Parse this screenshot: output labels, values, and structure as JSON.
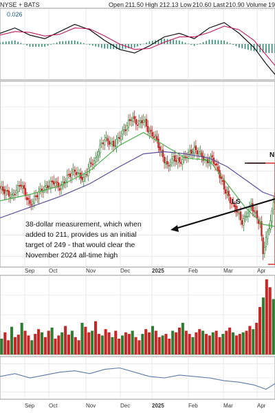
{
  "header": {
    "exchange": "NYSE + BATS",
    "open_label": "Open",
    "open_value": "211.50",
    "high_label": "High",
    "high_value": "212.13",
    "low_label": "Low",
    "low_value": "210.60",
    "last_label": "Last",
    "last_value": "210.90",
    "volume_label": "Volume",
    "volume_value": "19"
  },
  "macd_panel": {
    "readout": "0.026"
  },
  "annotation": {
    "lines": [
      "38-dollar measurement, which when",
      "added to 211, provides us an initial",
      "target of 249 - that would clear the",
      "November 2024 all-time high"
    ],
    "ls_label": "LS",
    "n_label": "N"
  },
  "x_axis": {
    "labels": [
      "Sep",
      "Oct",
      "Nov",
      "Dec",
      "2025",
      "Feb",
      "Mar",
      "Apr"
    ]
  },
  "colors": {
    "up": "#2e7d32",
    "down": "#c62828",
    "ma_fast": "#4caf50",
    "ma_slow": "#5c4b9b",
    "macd_line": "#111111",
    "signal_line": "#c2185b",
    "hist": "#2e8b6f",
    "rsi_line": "#5b7aa8",
    "grid": "#dcdcdc",
    "accent_box": "#d32f2f"
  },
  "chart_data": {
    "type": "candlestick",
    "xlabel": "",
    "ylabel": "",
    "months": [
      "Sep",
      "Oct",
      "Nov",
      "Dec",
      "2025",
      "Feb",
      "Mar",
      "Apr"
    ],
    "price_ylim": [
      175,
      262
    ],
    "price_points": [
      [
        0,
        212
      ],
      [
        8,
        208
      ],
      [
        14,
        214
      ],
      [
        20,
        204
      ],
      [
        26,
        210
      ],
      [
        32,
        213
      ],
      [
        36,
        215
      ],
      [
        40,
        212
      ],
      [
        46,
        218
      ],
      [
        50,
        220
      ],
      [
        56,
        216
      ],
      [
        60,
        223
      ],
      [
        64,
        225
      ],
      [
        66,
        230
      ],
      [
        70,
        235
      ],
      [
        76,
        232
      ],
      [
        80,
        236
      ],
      [
        84,
        240
      ],
      [
        88,
        245
      ],
      [
        92,
        242
      ],
      [
        96,
        244
      ],
      [
        100,
        238
      ],
      [
        104,
        236
      ],
      [
        108,
        228
      ],
      [
        112,
        222
      ],
      [
        116,
        226
      ],
      [
        120,
        224
      ],
      [
        126,
        228
      ],
      [
        130,
        230
      ],
      [
        134,
        228
      ],
      [
        138,
        224
      ],
      [
        142,
        226
      ],
      [
        146,
        220
      ],
      [
        150,
        212
      ],
      [
        154,
        206
      ],
      [
        158,
        202
      ],
      [
        162,
        196
      ],
      [
        164,
        198
      ],
      [
        168,
        204
      ],
      [
        172,
        198
      ],
      [
        174,
        195
      ],
      [
        176,
        182
      ],
      [
        178,
        188
      ],
      [
        180,
        194
      ],
      [
        182,
        200
      ],
      [
        184,
        211
      ]
    ],
    "ma_fast": [
      [
        0,
        206
      ],
      [
        20,
        209
      ],
      [
        40,
        213
      ],
      [
        60,
        220
      ],
      [
        80,
        232
      ],
      [
        96,
        238
      ],
      [
        110,
        232
      ],
      [
        124,
        226
      ],
      [
        140,
        225
      ],
      [
        152,
        214
      ],
      [
        164,
        203
      ],
      [
        176,
        195
      ],
      [
        184,
        194
      ]
    ],
    "ma_slow": [
      [
        0,
        198
      ],
      [
        20,
        203
      ],
      [
        40,
        208
      ],
      [
        60,
        214
      ],
      [
        80,
        222
      ],
      [
        96,
        228
      ],
      [
        110,
        229
      ],
      [
        124,
        228
      ],
      [
        140,
        226
      ],
      [
        152,
        222
      ],
      [
        164,
        216
      ],
      [
        176,
        210
      ],
      [
        184,
        208
      ]
    ],
    "volume_ylim": [
      0,
      100
    ],
    "volume": [
      20,
      28,
      18,
      35,
      22,
      25,
      40,
      30,
      24,
      18,
      26,
      32,
      28,
      22,
      30,
      34,
      20,
      24,
      28,
      36,
      25,
      30,
      22,
      18,
      40,
      35,
      28,
      30,
      42,
      26,
      24,
      32,
      28,
      22,
      30,
      20,
      24,
      28,
      26,
      30,
      22,
      18,
      26,
      32,
      28,
      36,
      30,
      22,
      24,
      26,
      20,
      30,
      28,
      34,
      40,
      30,
      26,
      22,
      28,
      32,
      30,
      26,
      24,
      28,
      30,
      22,
      26,
      30,
      34,
      28,
      24,
      26,
      28,
      30,
      36,
      32,
      40,
      60,
      72,
      95,
      85,
      70
    ],
    "macd_ylim": [
      -4,
      4
    ],
    "macd": [
      [
        0,
        1.2
      ],
      [
        10,
        1.8
      ],
      [
        20,
        1.0
      ],
      [
        30,
        0.6
      ],
      [
        40,
        1.4
      ],
      [
        50,
        2.2
      ],
      [
        60,
        1.6
      ],
      [
        70,
        0.4
      ],
      [
        80,
        -0.6
      ],
      [
        90,
        -1.0
      ],
      [
        100,
        -0.2
      ],
      [
        110,
        0.8
      ],
      [
        120,
        1.2
      ],
      [
        130,
        0.6
      ],
      [
        140,
        1.8
      ],
      [
        150,
        2.4
      ],
      [
        160,
        1.2
      ],
      [
        170,
        -0.4
      ],
      [
        178,
        -2.2
      ],
      [
        184,
        -3.4
      ]
    ],
    "signal": [
      [
        0,
        1.0
      ],
      [
        10,
        1.4
      ],
      [
        20,
        1.3
      ],
      [
        30,
        0.9
      ],
      [
        40,
        1.1
      ],
      [
        50,
        1.8
      ],
      [
        60,
        1.7
      ],
      [
        70,
        0.9
      ],
      [
        80,
        0.0
      ],
      [
        90,
        -0.6
      ],
      [
        100,
        -0.5
      ],
      [
        110,
        0.2
      ],
      [
        120,
        0.8
      ],
      [
        130,
        0.8
      ],
      [
        140,
        1.3
      ],
      [
        150,
        2.0
      ],
      [
        160,
        1.6
      ],
      [
        170,
        0.4
      ],
      [
        178,
        -1.2
      ],
      [
        184,
        -2.4
      ]
    ],
    "rsi_ylim": [
      20,
      80
    ],
    "rsi": [
      [
        0,
        52
      ],
      [
        10,
        56
      ],
      [
        20,
        50
      ],
      [
        30,
        54
      ],
      [
        40,
        58
      ],
      [
        50,
        60
      ],
      [
        60,
        56
      ],
      [
        70,
        62
      ],
      [
        80,
        64
      ],
      [
        90,
        58
      ],
      [
        100,
        52
      ],
      [
        110,
        50
      ],
      [
        120,
        54
      ],
      [
        130,
        52
      ],
      [
        140,
        50
      ],
      [
        150,
        46
      ],
      [
        160,
        44
      ],
      [
        170,
        40
      ],
      [
        178,
        34
      ],
      [
        184,
        42
      ]
    ]
  }
}
